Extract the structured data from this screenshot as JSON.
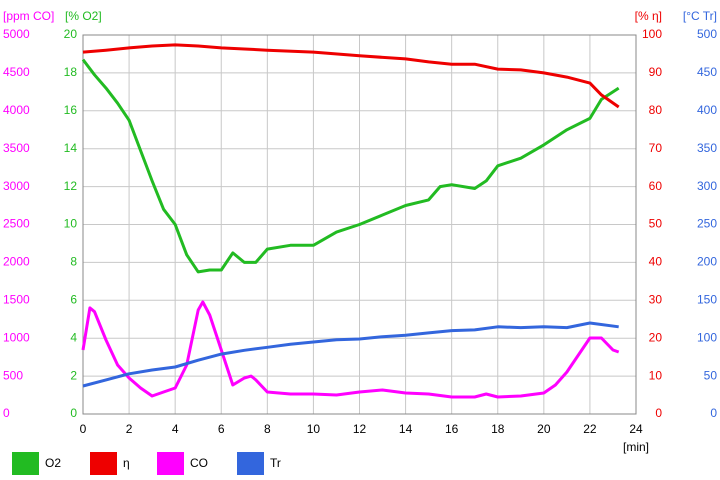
{
  "chart_data": {
    "type": "line",
    "x_label": "[min]",
    "xlim": [
      0,
      24
    ],
    "xticks": [
      0,
      2,
      4,
      6,
      8,
      10,
      12,
      14,
      16,
      18,
      20,
      22,
      24
    ],
    "grid": true,
    "grid_axis": "o2",
    "axes": {
      "co": {
        "title": "[ppm CO]",
        "ylim": [
          0,
          5000
        ],
        "yticks": [
          0,
          500,
          1000,
          1500,
          2000,
          2500,
          3000,
          3500,
          4000,
          4500,
          5000
        ],
        "color": "#ff00ff",
        "side": "left-outer"
      },
      "o2": {
        "title": "[% O2]",
        "ylim": [
          0,
          20
        ],
        "yticks": [
          0,
          2,
          4,
          6,
          8,
          10,
          12,
          14,
          16,
          18,
          20
        ],
        "color": "#22bb22",
        "side": "left-inner"
      },
      "eta": {
        "title": "[% η]",
        "ylim": [
          0,
          100
        ],
        "yticks": [
          0,
          10,
          20,
          30,
          40,
          50,
          60,
          70,
          80,
          90,
          100
        ],
        "color": "#ee0000",
        "side": "right-inner"
      },
      "tr": {
        "title": "[°C Tr]",
        "ylim": [
          0,
          500
        ],
        "yticks": [
          0,
          50,
          100,
          150,
          200,
          250,
          300,
          350,
          400,
          450,
          500
        ],
        "color": "#3366dd",
        "side": "right-outer"
      }
    },
    "series": [
      {
        "name": "O2",
        "axis": "o2",
        "color": "#22bb22",
        "x": [
          0,
          0.5,
          1,
          1.5,
          2,
          2.5,
          3,
          3.5,
          4,
          4.5,
          5,
          5.5,
          6,
          6.5,
          7,
          7.5,
          8,
          9,
          10,
          11,
          12,
          13,
          14,
          15,
          15.5,
          16,
          17,
          17.5,
          18,
          19,
          20,
          21,
          22,
          22.5,
          23.25
        ],
        "values": [
          18.7,
          17.9,
          17.2,
          16.4,
          15.5,
          13.9,
          12.3,
          10.8,
          10.0,
          8.4,
          7.5,
          7.6,
          7.6,
          8.5,
          8.0,
          8.0,
          8.7,
          8.9,
          8.9,
          9.6,
          10.0,
          10.5,
          11.0,
          11.3,
          12.0,
          12.1,
          11.9,
          12.3,
          13.1,
          13.5,
          14.2,
          15.0,
          15.6,
          16.6,
          17.2
        ]
      },
      {
        "name": "η",
        "axis": "eta",
        "color": "#ee0000",
        "x": [
          0,
          1,
          2,
          3,
          4,
          5,
          6,
          7,
          8,
          10,
          12,
          14,
          15,
          16,
          17,
          18,
          19,
          20,
          21,
          22,
          22.5,
          23.25
        ],
        "values": [
          95.5,
          96,
          96.6,
          97.1,
          97.4,
          97.1,
          96.6,
          96.3,
          96,
          95.5,
          94.5,
          93.7,
          92.9,
          92.3,
          92.3,
          91,
          90.8,
          90,
          88.9,
          87.3,
          84.2,
          81
        ]
      },
      {
        "name": "CO",
        "axis": "co",
        "color": "#ff00ff",
        "x": [
          0,
          0.3,
          0.5,
          1,
          1.5,
          2,
          2.5,
          3,
          3.5,
          4,
          4.5,
          5,
          5.2,
          5.5,
          6,
          6.5,
          7,
          7.3,
          7.5,
          8,
          9,
          10,
          11,
          12,
          13,
          14,
          15,
          16,
          17,
          17.5,
          18,
          19,
          20,
          20.5,
          21,
          21.5,
          22,
          22.5,
          23,
          23.25
        ],
        "values": [
          844,
          1400,
          1350,
          976,
          646,
          475,
          343,
          237,
          290,
          343,
          646,
          1372,
          1478,
          1306,
          844,
          383,
          475,
          500,
          450,
          290,
          264,
          264,
          251,
          290,
          317,
          277,
          264,
          224,
          224,
          264,
          224,
          237,
          277,
          383,
          554,
          778,
          1003,
          1003,
          844,
          818
        ]
      },
      {
        "name": "Tr",
        "axis": "tr",
        "color": "#3366dd",
        "x": [
          0,
          1,
          2,
          3,
          4,
          5,
          6,
          7,
          8,
          9,
          10,
          11,
          12,
          13,
          14,
          15,
          16,
          17,
          18,
          19,
          20,
          21,
          22,
          23.25
        ],
        "values": [
          37,
          45,
          53,
          58,
          62,
          71,
          79,
          84,
          88,
          92,
          95,
          98,
          99,
          102,
          104,
          107,
          110,
          111,
          115,
          114,
          115,
          114,
          120,
          115
        ]
      }
    ]
  }
}
